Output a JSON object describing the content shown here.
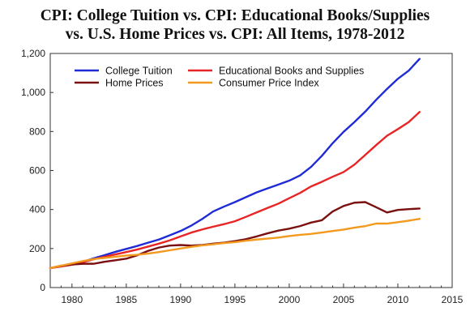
{
  "chart_data": {
    "type": "line",
    "title_line1": "CPI: College Tuition vs. CPI: Educational Books/Supplies",
    "title_line2": "vs. U.S. Home Prices vs. CPI: All Items, 1978-2012",
    "xlim": [
      1978,
      2015
    ],
    "ylim": [
      0,
      1200
    ],
    "xticks": [
      1980,
      1985,
      1990,
      1995,
      2000,
      2005,
      2010,
      2015
    ],
    "yticks": [
      0,
      200,
      400,
      600,
      800,
      1000,
      1200
    ],
    "ytick_labels": [
      "0",
      "200",
      "400",
      "600",
      "800",
      "1,000",
      "1,200"
    ],
    "grid": false,
    "legend_position": "top-left",
    "x": [
      1978,
      1979,
      1980,
      1981,
      1982,
      1983,
      1984,
      1985,
      1986,
      1987,
      1988,
      1989,
      1990,
      1991,
      1992,
      1993,
      1994,
      1995,
      1996,
      1997,
      1998,
      1999,
      2000,
      2001,
      2002,
      2003,
      2004,
      2005,
      2006,
      2007,
      2008,
      2009,
      2010,
      2011,
      2012
    ],
    "series": [
      {
        "name": "College Tuition",
        "color": "#1f2bd6",
        "values": [
          100,
          108,
          118,
          132,
          150,
          166,
          183,
          198,
          213,
          230,
          246,
          268,
          290,
          318,
          352,
          390,
          415,
          438,
          463,
          488,
          508,
          528,
          548,
          575,
          618,
          675,
          740,
          798,
          848,
          902,
          962,
          1018,
          1070,
          1112,
          1172
        ]
      },
      {
        "name": "Educational Books and Supplies",
        "color": "#e82424",
        "values": [
          100,
          108,
          117,
          130,
          145,
          158,
          170,
          182,
          195,
          210,
          225,
          242,
          262,
          282,
          298,
          312,
          325,
          340,
          362,
          385,
          408,
          430,
          458,
          485,
          518,
          542,
          568,
          592,
          630,
          680,
          730,
          778,
          812,
          848,
          900
        ]
      },
      {
        "name": "Home Prices",
        "color": "#7a1010",
        "values": [
          100,
          112,
          118,
          122,
          122,
          132,
          140,
          148,
          165,
          188,
          205,
          215,
          218,
          215,
          218,
          225,
          230,
          238,
          248,
          262,
          278,
          292,
          302,
          315,
          333,
          345,
          390,
          418,
          435,
          438,
          412,
          385,
          398,
          402,
          405
        ]
      },
      {
        "name": "Consumer Price Index",
        "color": "#f39a1e",
        "values": [
          100,
          112,
          124,
          136,
          146,
          152,
          158,
          164,
          168,
          174,
          182,
          191,
          200,
          209,
          216,
          222,
          228,
          233,
          240,
          246,
          251,
          256,
          264,
          270,
          275,
          282,
          290,
          297,
          307,
          315,
          328,
          328,
          335,
          343,
          352
        ]
      }
    ]
  }
}
